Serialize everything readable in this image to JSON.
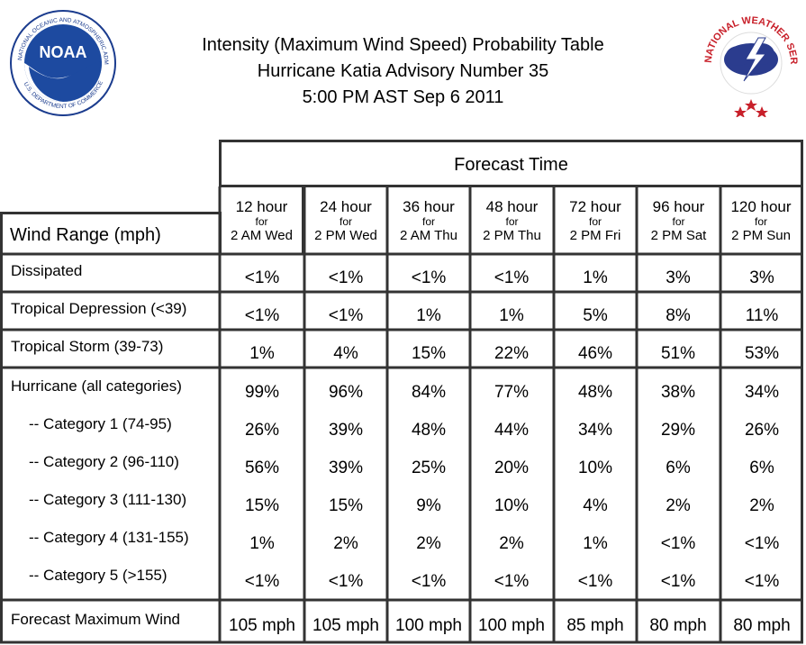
{
  "header": {
    "title_line1": "Intensity (Maximum Wind Speed) Probability Table",
    "title_line2": "Hurricane Katia Advisory Number 35",
    "title_line3": "5:00 PM AST Sep 6 2011",
    "noaa_logo": "noaa-logo",
    "nws_logo": "nws-logo"
  },
  "table": {
    "forecast_time_label": "Forecast Time",
    "wind_range_label": "Wind Range (mph)",
    "columns": [
      {
        "hours": "12 hour",
        "for": "for",
        "time": "2 AM Wed"
      },
      {
        "hours": "24 hour",
        "for": "for",
        "time": "2 PM Wed"
      },
      {
        "hours": "36 hour",
        "for": "for",
        "time": "2 AM Thu"
      },
      {
        "hours": "48 hour",
        "for": "for",
        "time": "2 PM Thu"
      },
      {
        "hours": "72 hour",
        "for": "for",
        "time": "2 PM Fri"
      },
      {
        "hours": "96 hour",
        "for": "for",
        "time": "2 PM Sat"
      },
      {
        "hours": "120 hour",
        "for": "for",
        "time": "2 PM Sun"
      }
    ],
    "rows": [
      {
        "label": "Dissipated",
        "values": [
          "<1%",
          "<1%",
          "<1%",
          "<1%",
          "1%",
          "3%",
          "3%"
        ]
      },
      {
        "label": "Tropical Depression (<39)",
        "values": [
          "<1%",
          "<1%",
          "1%",
          "1%",
          "5%",
          "8%",
          "11%"
        ]
      },
      {
        "label": "Tropical Storm (39-73)",
        "values": [
          "1%",
          "4%",
          "15%",
          "22%",
          "46%",
          "51%",
          "53%"
        ]
      },
      {
        "label": "Hurricane (all categories)",
        "values": [
          "99%",
          "96%",
          "84%",
          "77%",
          "48%",
          "38%",
          "34%"
        ]
      },
      {
        "label": "-- Category 1 (74-95)",
        "values": [
          "26%",
          "39%",
          "48%",
          "44%",
          "34%",
          "29%",
          "26%"
        ]
      },
      {
        "label": "-- Category 2 (96-110)",
        "values": [
          "56%",
          "39%",
          "25%",
          "20%",
          "10%",
          "6%",
          "6%"
        ]
      },
      {
        "label": "-- Category 3 (111-130)",
        "values": [
          "15%",
          "15%",
          "9%",
          "10%",
          "4%",
          "2%",
          "2%"
        ]
      },
      {
        "label": "-- Category 4 (131-155)",
        "values": [
          "1%",
          "2%",
          "2%",
          "2%",
          "1%",
          "<1%",
          "<1%"
        ]
      },
      {
        "label": "-- Category 5 (>155)",
        "values": [
          "<1%",
          "<1%",
          "<1%",
          "<1%",
          "<1%",
          "<1%",
          "<1%"
        ]
      },
      {
        "label": "Forecast Maximum Wind",
        "values": [
          "105 mph",
          "105 mph",
          "100 mph",
          "100 mph",
          "85 mph",
          "80 mph",
          "80 mph"
        ]
      }
    ]
  }
}
